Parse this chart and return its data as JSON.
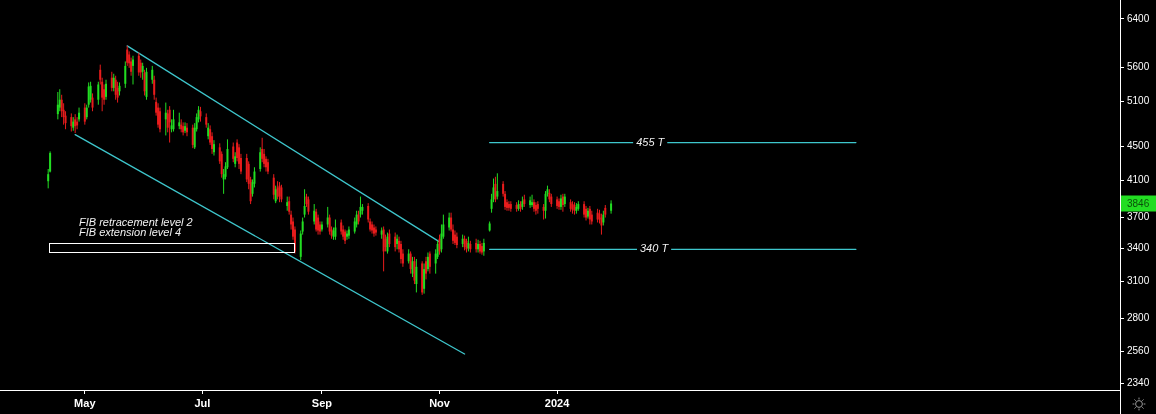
{
  "chart_data": {
    "type": "candlestick",
    "log": true,
    "xlim": [
      "2023-03-18",
      "2024-10-19"
    ],
    "xticks": [
      {
        "value": "2023-05-01",
        "label": "May"
      },
      {
        "value": "2023-07-01",
        "label": "Jul"
      },
      {
        "value": "2023-09-01",
        "label": "Sep"
      },
      {
        "value": "2023-11-01",
        "label": "Nov"
      },
      {
        "value": "2024-01-01",
        "label": "2024"
      }
    ],
    "ylim": [
      2300,
      6740
    ],
    "yticks": [
      2340,
      2560,
      2800,
      3100,
      3400,
      3700,
      4100,
      4500,
      5100,
      5600,
      6400
    ],
    "series": [
      {
        "x": [
          "2023-04-12",
          "2023-04-13",
          "2023-04-17",
          "2023-04-18",
          "2023-04-19",
          "2023-04-20",
          "2023-04-21",
          "2023-04-24",
          "2023-04-25",
          "2023-04-26",
          "2023-04-27",
          "2023-04-28",
          "2023-05-01",
          "2023-05-02",
          "2023-05-03",
          "2023-05-04",
          "2023-05-05",
          "2023-05-08",
          "2023-05-09",
          "2023-05-10",
          "2023-05-11",
          "2023-05-12",
          "2023-05-15",
          "2023-05-16",
          "2023-05-17",
          "2023-05-18",
          "2023-05-19",
          "2023-05-22",
          "2023-05-23",
          "2023-05-24",
          "2023-05-25",
          "2023-05-26",
          "2023-05-29",
          "2023-05-30",
          "2023-05-31",
          "2023-06-01",
          "2023-06-02",
          "2023-06-05",
          "2023-06-06",
          "2023-06-07",
          "2023-06-08",
          "2023-06-09",
          "2023-06-12",
          "2023-06-13",
          "2023-06-14",
          "2023-06-15",
          "2023-06-16",
          "2023-06-19",
          "2023-06-20",
          "2023-06-21",
          "2023-06-22",
          "2023-06-23",
          "2023-06-26",
          "2023-06-27",
          "2023-06-28",
          "2023-06-29",
          "2023-06-30",
          "2023-07-03",
          "2023-07-04",
          "2023-07-05",
          "2023-07-06",
          "2023-07-07",
          "2023-07-10",
          "2023-07-11",
          "2023-07-12",
          "2023-07-13",
          "2023-07-14",
          "2023-07-17",
          "2023-07-18",
          "2023-07-19",
          "2023-07-20",
          "2023-07-21",
          "2023-07-24",
          "2023-07-25",
          "2023-07-26",
          "2023-07-27",
          "2023-07-28",
          "2023-07-31",
          "2023-08-01",
          "2023-08-02",
          "2023-08-03",
          "2023-08-04",
          "2023-08-07",
          "2023-08-08",
          "2023-08-09",
          "2023-08-10",
          "2023-08-11",
          "2023-08-14",
          "2023-08-15",
          "2023-08-16",
          "2023-08-17",
          "2023-08-18",
          "2023-08-21",
          "2023-08-22",
          "2023-08-23",
          "2023-08-24",
          "2023-08-25",
          "2023-08-28",
          "2023-08-29",
          "2023-08-30",
          "2023-08-31",
          "2023-09-01",
          "2023-09-04",
          "2023-09-05",
          "2023-09-06",
          "2023-09-07",
          "2023-09-08",
          "2023-09-11",
          "2023-09-12",
          "2023-09-13",
          "2023-09-14",
          "2023-09-15",
          "2023-09-18",
          "2023-09-19",
          "2023-09-20",
          "2023-09-21",
          "2023-09-22",
          "2023-09-25",
          "2023-09-26",
          "2023-09-27",
          "2023-09-28",
          "2023-09-29",
          "2023-10-02",
          "2023-10-03",
          "2023-10-04",
          "2023-10-05",
          "2023-10-06",
          "2023-10-09",
          "2023-10-10",
          "2023-10-11",
          "2023-10-12",
          "2023-10-13",
          "2023-10-16",
          "2023-10-17",
          "2023-10-18",
          "2023-10-19",
          "2023-10-20",
          "2023-10-23",
          "2023-10-24",
          "2023-10-25",
          "2023-10-26",
          "2023-10-27",
          "2023-10-30",
          "2023-10-31",
          "2023-11-01",
          "2023-11-02",
          "2023-11-03",
          "2023-11-06",
          "2023-11-07",
          "2023-11-08",
          "2023-11-09",
          "2023-11-10",
          "2023-11-13",
          "2023-11-14",
          "2023-11-15",
          "2023-11-16",
          "2023-11-17",
          "2023-11-20",
          "2023-11-21",
          "2023-11-22",
          "2023-11-23",
          "2023-11-24",
          "2023-11-27",
          "2023-11-28",
          "2023-11-29",
          "2023-11-30",
          "2023-12-01",
          "2023-12-04",
          "2023-12-05",
          "2023-12-06",
          "2023-12-07",
          "2023-12-08",
          "2023-12-11",
          "2023-12-12",
          "2023-12-13",
          "2023-12-14",
          "2023-12-15",
          "2023-12-18",
          "2023-12-19",
          "2023-12-20",
          "2023-12-21",
          "2023-12-22",
          "2023-12-25",
          "2023-12-26",
          "2023-12-27",
          "2023-12-28",
          "2023-12-29",
          "2024-01-01",
          "2024-01-02",
          "2024-01-03",
          "2024-01-04",
          "2024-01-05",
          "2024-01-08",
          "2024-01-09",
          "2024-01-10",
          "2024-01-11",
          "2024-01-12",
          "2024-01-15",
          "2024-01-16",
          "2024-01-17",
          "2024-01-18",
          "2024-01-19",
          "2024-01-22",
          "2024-01-23",
          "2024-01-24",
          "2024-01-25",
          "2024-01-26",
          "2024-01-29"
        ],
        "ohlc": [
          [
            4090,
            4230,
            4010,
            4170
          ],
          [
            4200,
            4440,
            4190,
            4420
          ],
          [
            4920,
            5230,
            4850,
            5050
          ],
          [
            5010,
            5270,
            4960,
            5120
          ],
          [
            5120,
            5190,
            4880,
            4960
          ],
          [
            4980,
            5070,
            4780,
            4880
          ],
          [
            4900,
            4960,
            4720,
            4800
          ],
          [
            4880,
            4930,
            4690,
            4760
          ],
          [
            4740,
            4880,
            4700,
            4820
          ],
          [
            4850,
            4920,
            4670,
            4760
          ],
          [
            4820,
            4880,
            4720,
            4770
          ],
          [
            4850,
            5010,
            4820,
            4940
          ],
          [
            5010,
            5070,
            4780,
            4820
          ],
          [
            4880,
            5050,
            4850,
            5010
          ],
          [
            5050,
            5370,
            5010,
            5310
          ],
          [
            5120,
            5380,
            5080,
            5320
          ],
          [
            5150,
            5210,
            4960,
            5010
          ],
          [
            5120,
            5380,
            5050,
            5340
          ],
          [
            5560,
            5640,
            5340,
            5410
          ],
          [
            5380,
            5440,
            4960,
            5150
          ],
          [
            5270,
            5340,
            5050,
            5120
          ],
          [
            5160,
            5410,
            5120,
            5350
          ],
          [
            5440,
            5530,
            5240,
            5290
          ],
          [
            5290,
            5500,
            5240,
            5440
          ],
          [
            5410,
            5470,
            5120,
            5190
          ],
          [
            5290,
            5380,
            5080,
            5150
          ],
          [
            5240,
            5370,
            5180,
            5320
          ],
          [
            5350,
            5690,
            5290,
            5620
          ],
          [
            5880,
            5940,
            5620,
            5670
          ],
          [
            5800,
            5850,
            5590,
            5660
          ],
          [
            5690,
            5750,
            5470,
            5530
          ],
          [
            5620,
            5780,
            5340,
            5720
          ],
          [
            5780,
            5830,
            5470,
            5520
          ],
          [
            5670,
            5720,
            5440,
            5520
          ],
          [
            5530,
            5670,
            5410,
            5620
          ],
          [
            5520,
            5560,
            5180,
            5240
          ],
          [
            5160,
            5590,
            5120,
            5530
          ],
          [
            5410,
            5620,
            5350,
            5560
          ],
          [
            5410,
            5470,
            5120,
            5190
          ],
          [
            5090,
            5150,
            4900,
            4940
          ],
          [
            5010,
            5070,
            4740,
            4780
          ],
          [
            4960,
            5010,
            4680,
            4720
          ],
          [
            4850,
            5080,
            4640,
            4940
          ],
          [
            4930,
            4980,
            4680,
            4740
          ],
          [
            4980,
            5030,
            4550,
            4810
          ],
          [
            4720,
            4850,
            4680,
            4770
          ],
          [
            4720,
            4980,
            4690,
            4850
          ],
          [
            4760,
            4940,
            4720,
            4810
          ],
          [
            4780,
            4850,
            4680,
            4720
          ],
          [
            4760,
            4810,
            4640,
            4680
          ],
          [
            4700,
            4810,
            4670,
            4760
          ],
          [
            4740,
            4800,
            4630,
            4680
          ],
          [
            4740,
            4780,
            4480,
            4520
          ],
          [
            4490,
            4800,
            4470,
            4740
          ],
          [
            4720,
            4930,
            4690,
            4880
          ],
          [
            4850,
            5030,
            4810,
            4980
          ],
          [
            4960,
            5020,
            4820,
            4890
          ],
          [
            4880,
            4930,
            4740,
            4780
          ],
          [
            4630,
            4800,
            4590,
            4740
          ],
          [
            4720,
            4770,
            4520,
            4550
          ],
          [
            4630,
            4680,
            4410,
            4470
          ],
          [
            4430,
            4580,
            4390,
            4530
          ],
          [
            4490,
            4540,
            4290,
            4320
          ],
          [
            4410,
            4440,
            4130,
            4170
          ],
          [
            4110,
            4230,
            3950,
            4170
          ],
          [
            4140,
            4310,
            4110,
            4260
          ],
          [
            4250,
            4590,
            4230,
            4470
          ],
          [
            4500,
            4550,
            4310,
            4350
          ],
          [
            4290,
            4430,
            4250,
            4380
          ],
          [
            4550,
            4590,
            4320,
            4360
          ],
          [
            4490,
            4530,
            4230,
            4290
          ],
          [
            4360,
            4410,
            4170,
            4200
          ],
          [
            4360,
            4410,
            4080,
            4110
          ],
          [
            4290,
            4320,
            4000,
            4060
          ],
          [
            4110,
            4140,
            3840,
            3870
          ],
          [
            3950,
            4110,
            3920,
            4080
          ],
          [
            4060,
            4250,
            4020,
            4200
          ],
          [
            4230,
            4490,
            4200,
            4430
          ],
          [
            4470,
            4610,
            4310,
            4350
          ],
          [
            4410,
            4470,
            4250,
            4290
          ],
          [
            4350,
            4380,
            4200,
            4250
          ],
          [
            4310,
            4350,
            4170,
            4200
          ],
          [
            4130,
            4170,
            3890,
            3940
          ],
          [
            3870,
            4040,
            3850,
            4000
          ],
          [
            4020,
            4090,
            3890,
            3920
          ],
          [
            4040,
            4080,
            3860,
            3920
          ],
          [
            4020,
            4050,
            3860,
            3890
          ],
          [
            3820,
            3920,
            3770,
            3860
          ],
          [
            3870,
            3920,
            3730,
            3760
          ],
          [
            3730,
            3770,
            3580,
            3630
          ],
          [
            3660,
            3700,
            3480,
            3510
          ],
          [
            3580,
            3610,
            3350,
            3370
          ],
          [
            3320,
            3570,
            3290,
            3540
          ],
          [
            3560,
            3700,
            3530,
            3660
          ],
          [
            3730,
            4000,
            3700,
            3820
          ],
          [
            3920,
            3950,
            3810,
            3840
          ],
          [
            3890,
            3920,
            3730,
            3760
          ],
          [
            3660,
            3840,
            3630,
            3770
          ],
          [
            3760,
            3790,
            3560,
            3580
          ],
          [
            3700,
            3730,
            3530,
            3570
          ],
          [
            3630,
            3660,
            3530,
            3560
          ],
          [
            3580,
            3660,
            3560,
            3630
          ],
          [
            3630,
            3810,
            3600,
            3700
          ],
          [
            3700,
            3730,
            3530,
            3560
          ],
          [
            3580,
            3610,
            3490,
            3520
          ],
          [
            3510,
            3600,
            3480,
            3570
          ],
          [
            3510,
            3680,
            3480,
            3600
          ],
          [
            3650,
            3680,
            3530,
            3560
          ],
          [
            3580,
            3620,
            3480,
            3510
          ],
          [
            3560,
            3580,
            3440,
            3470
          ],
          [
            3510,
            3570,
            3480,
            3540
          ],
          [
            3520,
            3610,
            3490,
            3580
          ],
          [
            3560,
            3700,
            3540,
            3660
          ],
          [
            3630,
            3770,
            3600,
            3730
          ],
          [
            3730,
            3770,
            3630,
            3660
          ],
          [
            3730,
            3920,
            3700,
            3810
          ],
          [
            3770,
            3840,
            3730,
            3810
          ],
          [
            3820,
            3850,
            3650,
            3680
          ],
          [
            3660,
            3690,
            3560,
            3580
          ],
          [
            3630,
            3660,
            3540,
            3570
          ],
          [
            3600,
            3630,
            3510,
            3540
          ],
          [
            3580,
            3610,
            3520,
            3550
          ],
          [
            3530,
            3600,
            3490,
            3570
          ],
          [
            3580,
            3610,
            3190,
            3370
          ],
          [
            3490,
            3530,
            3370,
            3410
          ],
          [
            3370,
            3550,
            3350,
            3510
          ],
          [
            3540,
            3580,
            3410,
            3440
          ],
          [
            3510,
            3550,
            3370,
            3410
          ],
          [
            3440,
            3530,
            3390,
            3490
          ],
          [
            3470,
            3510,
            3360,
            3390
          ],
          [
            3440,
            3470,
            3260,
            3300
          ],
          [
            3350,
            3390,
            3230,
            3260
          ],
          [
            3280,
            3390,
            3260,
            3350
          ],
          [
            3350,
            3370,
            3170,
            3210
          ],
          [
            3170,
            3320,
            3140,
            3280
          ],
          [
            3280,
            3320,
            3080,
            3110
          ],
          [
            3080,
            3300,
            3010,
            3230
          ],
          [
            3260,
            3280,
            2990,
            3010
          ],
          [
            3040,
            3260,
            3000,
            3210
          ],
          [
            3280,
            3320,
            3120,
            3170
          ],
          [
            3210,
            3360,
            3190,
            3320
          ],
          [
            3350,
            3370,
            3170,
            3230
          ],
          [
            3260,
            3390,
            3170,
            3350
          ],
          [
            3320,
            3470,
            3300,
            3440
          ],
          [
            3490,
            3530,
            3340,
            3370
          ],
          [
            3390,
            3630,
            3360,
            3540
          ],
          [
            3510,
            3730,
            3490,
            3630
          ],
          [
            3600,
            3750,
            3570,
            3700
          ],
          [
            3700,
            3750,
            3560,
            3580
          ],
          [
            3580,
            3630,
            3440,
            3470
          ],
          [
            3530,
            3570,
            3430,
            3450
          ],
          [
            3510,
            3550,
            3400,
            3430
          ],
          [
            3440,
            3530,
            3410,
            3490
          ],
          [
            3490,
            3520,
            3380,
            3410
          ],
          [
            3470,
            3490,
            3360,
            3390
          ],
          [
            3400,
            3510,
            3370,
            3450
          ],
          [
            3440,
            3470,
            3360,
            3390
          ],
          [
            3450,
            3490,
            3360,
            3390
          ],
          [
            3390,
            3480,
            3360,
            3440
          ],
          [
            3440,
            3470,
            3350,
            3370
          ],
          [
            3420,
            3450,
            3340,
            3360
          ],
          [
            3370,
            3490,
            3330,
            3450
          ],
          [
            3570,
            3660,
            3560,
            3640
          ],
          [
            3790,
            3950,
            3750,
            3890
          ],
          [
            3890,
            4120,
            3860,
            4020
          ],
          [
            4060,
            4140,
            3860,
            3890
          ],
          [
            3920,
            4180,
            3890,
            3980
          ],
          [
            4060,
            4090,
            3920,
            3950
          ],
          [
            3950,
            3980,
            3780,
            3810
          ],
          [
            3860,
            3890,
            3770,
            3800
          ],
          [
            3840,
            3870,
            3770,
            3800
          ],
          [
            3840,
            3870,
            3760,
            3790
          ],
          [
            3830,
            3860,
            3760,
            3790
          ],
          [
            3790,
            3880,
            3770,
            3840
          ],
          [
            3840,
            3870,
            3760,
            3790
          ],
          [
            3810,
            3920,
            3780,
            3870
          ],
          [
            3890,
            3940,
            3810,
            3840
          ],
          [
            3830,
            3920,
            3800,
            3880
          ],
          [
            3830,
            3940,
            3810,
            3860
          ],
          [
            3860,
            3890,
            3760,
            3790
          ],
          [
            3830,
            3860,
            3730,
            3770
          ],
          [
            3840,
            3870,
            3740,
            3790
          ],
          [
            3810,
            3840,
            3680,
            3770
          ],
          [
            3770,
            3980,
            3690,
            3950
          ],
          [
            3950,
            4040,
            3920,
            4000
          ],
          [
            3960,
            4000,
            3860,
            3890
          ],
          [
            3920,
            3950,
            3810,
            3840
          ],
          [
            3890,
            3920,
            3790,
            3820
          ],
          [
            3870,
            3900,
            3780,
            3810
          ],
          [
            3810,
            3940,
            3780,
            3900
          ],
          [
            3920,
            3950,
            3760,
            3830
          ],
          [
            3840,
            3950,
            3810,
            3920
          ],
          [
            3860,
            3890,
            3760,
            3790
          ],
          [
            3840,
            3870,
            3740,
            3780
          ],
          [
            3830,
            3860,
            3730,
            3770
          ],
          [
            3770,
            3850,
            3740,
            3810
          ],
          [
            3790,
            3870,
            3770,
            3840
          ],
          [
            3840,
            3870,
            3700,
            3730
          ],
          [
            3790,
            3820,
            3670,
            3700
          ],
          [
            3710,
            3800,
            3690,
            3770
          ],
          [
            3790,
            3820,
            3630,
            3680
          ],
          [
            3730,
            3770,
            3630,
            3660
          ],
          [
            3750,
            3790,
            3650,
            3680
          ],
          [
            3740,
            3780,
            3640,
            3680
          ],
          [
            3700,
            3740,
            3530,
            3620
          ],
          [
            3650,
            3770,
            3620,
            3730
          ],
          [
            3800,
            3830,
            3700,
            3730
          ],
          [
            3770,
            3880,
            3740,
            3846
          ]
        ],
        "colors": [
          "#22dd22",
          "#22dd22",
          "#22dd22",
          "#22dd22",
          "#e81c1c",
          "#e81c1c",
          "#e81c1c",
          "#e81c1c",
          "#22dd22",
          "#e81c1c",
          "#e81c1c",
          "#22dd22",
          "#e81c1c",
          "#22dd22",
          "#22dd22",
          "#22dd22",
          "#e81c1c",
          "#22dd22",
          "#e81c1c",
          "#e81c1c",
          "#e81c1c",
          "#22dd22",
          "#e81c1c",
          "#22dd22",
          "#e81c1c",
          "#e81c1c",
          "#22dd22",
          "#22dd22",
          "#e81c1c",
          "#e81c1c",
          "#e81c1c",
          "#22dd22",
          "#e81c1c",
          "#e81c1c",
          "#22dd22",
          "#e81c1c",
          "#22dd22",
          "#22dd22",
          "#e81c1c",
          "#e81c1c",
          "#e81c1c",
          "#e81c1c",
          "#22dd22",
          "#e81c1c",
          "#e81c1c",
          "#22dd22",
          "#22dd22",
          "#22dd22",
          "#e81c1c",
          "#e81c1c",
          "#22dd22",
          "#e81c1c",
          "#e81c1c",
          "#22dd22",
          "#22dd22",
          "#22dd22",
          "#e81c1c",
          "#e81c1c",
          "#22dd22",
          "#e81c1c",
          "#e81c1c",
          "#22dd22",
          "#e81c1c",
          "#e81c1c",
          "#22dd22",
          "#22dd22",
          "#22dd22",
          "#e81c1c",
          "#22dd22",
          "#e81c1c",
          "#e81c1c",
          "#e81c1c",
          "#e81c1c",
          "#e81c1c",
          "#e81c1c",
          "#22dd22",
          "#22dd22",
          "#22dd22",
          "#e81c1c",
          "#e81c1c",
          "#e81c1c",
          "#e81c1c",
          "#e81c1c",
          "#22dd22",
          "#e81c1c",
          "#e81c1c",
          "#e81c1c",
          "#22dd22",
          "#e81c1c",
          "#e81c1c",
          "#e81c1c",
          "#e81c1c",
          "#22dd22",
          "#22dd22",
          "#22dd22",
          "#e81c1c",
          "#e81c1c",
          "#22dd22",
          "#e81c1c",
          "#e81c1c",
          "#e81c1c",
          "#22dd22",
          "#22dd22",
          "#e81c1c",
          "#e81c1c",
          "#22dd22",
          "#22dd22",
          "#e81c1c",
          "#e81c1c",
          "#e81c1c",
          "#22dd22",
          "#22dd22",
          "#22dd22",
          "#22dd22",
          "#e81c1c",
          "#22dd22",
          "#22dd22",
          "#e81c1c",
          "#e81c1c",
          "#e81c1c",
          "#e81c1c",
          "#e81c1c",
          "#22dd22",
          "#e81c1c",
          "#e81c1c",
          "#22dd22",
          "#e81c1c",
          "#e81c1c",
          "#22dd22",
          "#e81c1c",
          "#e81c1c",
          "#e81c1c",
          "#22dd22",
          "#e81c1c",
          "#22dd22",
          "#e81c1c",
          "#22dd22",
          "#e81c1c",
          "#22dd22",
          "#e81c1c",
          "#22dd22",
          "#e81c1c",
          "#22dd22",
          "#22dd22",
          "#e81c1c",
          "#22dd22",
          "#22dd22",
          "#22dd22",
          "#e81c1c",
          "#e81c1c",
          "#e81c1c",
          "#e81c1c",
          "#22dd22",
          "#e81c1c",
          "#e81c1c",
          "#22dd22",
          "#e81c1c",
          "#e81c1c",
          "#22dd22",
          "#e81c1c",
          "#e81c1c",
          "#22dd22",
          "#22dd22",
          "#22dd22",
          "#22dd22",
          "#e81c1c",
          "#22dd22",
          "#e81c1c",
          "#e81c1c",
          "#e81c1c",
          "#e81c1c",
          "#e81c1c",
          "#e81c1c",
          "#22dd22",
          "#e81c1c",
          "#22dd22",
          "#e81c1c",
          "#22dd22",
          "#22dd22",
          "#e81c1c",
          "#e81c1c",
          "#e81c1c",
          "#e81c1c",
          "#22dd22",
          "#22dd22",
          "#e81c1c",
          "#e81c1c",
          "#e81c1c",
          "#e81c1c",
          "#22dd22",
          "#e81c1c",
          "#22dd22",
          "#e81c1c",
          "#e81c1c",
          "#e81c1c",
          "#22dd22",
          "#22dd22",
          "#e81c1c",
          "#e81c1c",
          "#22dd22",
          "#e81c1c",
          "#e81c1c",
          "#e81c1c",
          "#e81c1c",
          "#e81c1c",
          "#22dd22",
          "#e81c1c",
          "#22dd22"
        ]
      },
      {
        "type": "line",
        "color": "#3ec6cc",
        "x": [
          "2023-05-23",
          "2023-11-01"
        ],
        "values": [
          5940,
          3460
        ]
      },
      {
        "type": "line",
        "color": "#3ec6cc",
        "x": [
          "2023-04-26",
          "2023-11-14"
        ],
        "values": [
          4650,
          2540
        ]
      },
      {
        "type": "line",
        "color": "#3ec6cc",
        "x": [
          "2023-11-27",
          "2024-06-04"
        ],
        "values": [
          4550,
          4550
        ]
      },
      {
        "type": "line",
        "color": "#3ec6cc",
        "x": [
          "2023-11-27",
          "2024-06-04"
        ],
        "values": [
          3390,
          3390
        ]
      }
    ],
    "annotations": [
      "FIB retracement level 2",
      "FIB extension level 4",
      {
        "text": "455 T",
        "x": "2024-02-11",
        "y": 4550
      },
      {
        "text": "340 T",
        "x": "2024-02-13",
        "y": 3390
      },
      {
        "text": "3846",
        "y": 3846
      }
    ]
  }
}
